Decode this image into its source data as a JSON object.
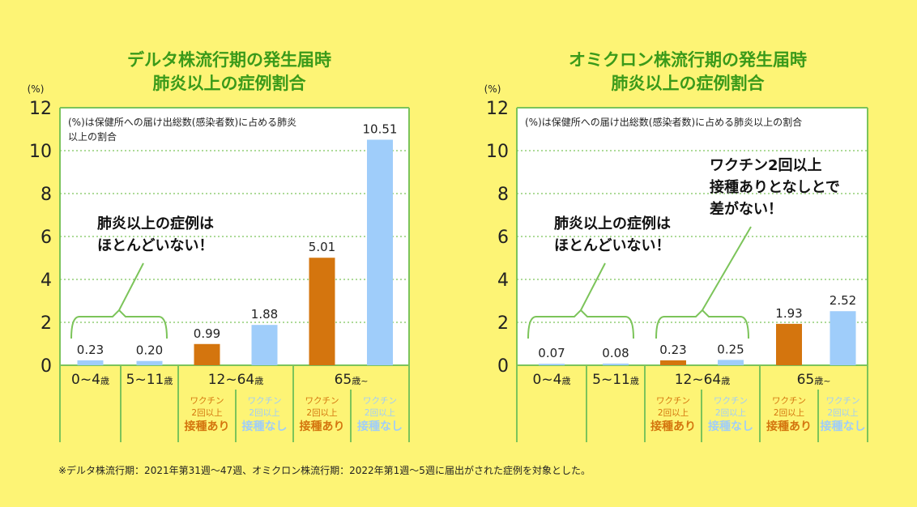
{
  "colors": {
    "vaccinated": "#d4750e",
    "unvaccinated": "#9fcdfa",
    "grid": "#7cc45a",
    "title": "#3a9a1a",
    "plot_bg": "#ffffff"
  },
  "footnote": "※デルタ株流行期：2021年第31週〜47週、オミクロン株流行期：2022年第1週〜5週に届出がされた症例を対象とした。",
  "chart_data": [
    {
      "type": "bar",
      "title": [
        "デルタ株流行期の発生届時",
        "肺炎以上の症例割合"
      ],
      "ylabel": "(%)",
      "ylim": [
        0,
        12
      ],
      "yticks": [
        "0",
        "2",
        "4",
        "6",
        "8",
        "10",
        "12"
      ],
      "note": [
        "(%)は保健所への届け出総数(感染者数)に占める肺炎",
        "以上の割合"
      ],
      "groups": [
        {
          "label": "0~4",
          "unit": "歳"
        },
        {
          "label": "5~11",
          "unit": "歳"
        },
        {
          "label": "12~64",
          "unit": "歳"
        },
        {
          "label": "65",
          "unit": "歳~"
        }
      ],
      "sub_labels": [
        {
          "l1": "ワクチン",
          "l2": "2回以上",
          "l3": "接種あり",
          "kind": "vaccinated"
        },
        {
          "l1": "ワクチン",
          "l2": "2回以上",
          "l3": "接種なし",
          "kind": "unvaccinated"
        },
        {
          "l1": "ワクチン",
          "l2": "2回以上",
          "l3": "接種あり",
          "kind": "vaccinated"
        },
        {
          "l1": "ワクチン",
          "l2": "2回以上",
          "l3": "接種なし",
          "kind": "unvaccinated"
        }
      ],
      "bars": [
        {
          "value": 0.23,
          "label": "0.23",
          "kind": "unvaccinated"
        },
        {
          "value": 0.2,
          "label": "0.20",
          "kind": "unvaccinated"
        },
        {
          "value": 0.99,
          "label": "0.99",
          "kind": "vaccinated"
        },
        {
          "value": 1.88,
          "label": "1.88",
          "kind": "unvaccinated"
        },
        {
          "value": 5.01,
          "label": "5.01",
          "kind": "vaccinated"
        },
        {
          "value": 10.51,
          "label": "10.51",
          "kind": "unvaccinated"
        }
      ],
      "annotations": [
        {
          "lines": [
            "肺炎以上の症例は",
            "ほとんどいない！"
          ],
          "bracket": [
            0,
            1
          ]
        }
      ]
    },
    {
      "type": "bar",
      "title": [
        "オミクロン株流行期の発生届時",
        "肺炎以上の症例割合"
      ],
      "ylabel": "(%)",
      "ylim": [
        0,
        12
      ],
      "yticks": [
        "0",
        "2",
        "4",
        "6",
        "8",
        "10",
        "12"
      ],
      "note": [
        "(%)は保健所への届け出総数(感染者数)に占める肺炎以上の割合"
      ],
      "groups": [
        {
          "label": "0~4",
          "unit": "歳"
        },
        {
          "label": "5~11",
          "unit": "歳"
        },
        {
          "label": "12~64",
          "unit": "歳"
        },
        {
          "label": "65",
          "unit": "歳~"
        }
      ],
      "sub_labels": [
        {
          "l1": "ワクチン",
          "l2": "2回以上",
          "l3": "接種あり",
          "kind": "vaccinated"
        },
        {
          "l1": "ワクチン",
          "l2": "2回以上",
          "l3": "接種なし",
          "kind": "unvaccinated"
        },
        {
          "l1": "ワクチン",
          "l2": "2回以上",
          "l3": "接種あり",
          "kind": "vaccinated"
        },
        {
          "l1": "ワクチン",
          "l2": "2回以上",
          "l3": "接種なし",
          "kind": "unvaccinated"
        }
      ],
      "bars": [
        {
          "value": 0.07,
          "label": "0.07",
          "kind": "unvaccinated"
        },
        {
          "value": 0.08,
          "label": "0.08",
          "kind": "unvaccinated"
        },
        {
          "value": 0.23,
          "label": "0.23",
          "kind": "vaccinated"
        },
        {
          "value": 0.25,
          "label": "0.25",
          "kind": "unvaccinated"
        },
        {
          "value": 1.93,
          "label": "1.93",
          "kind": "vaccinated"
        },
        {
          "value": 2.52,
          "label": "2.52",
          "kind": "unvaccinated"
        }
      ],
      "annotations": [
        {
          "lines": [
            "肺炎以上の症例は",
            "ほとんどいない！"
          ],
          "bracket": [
            0,
            1
          ]
        },
        {
          "lines": [
            "ワクチン2回以上",
            "接種ありとなしとで",
            "差がない！"
          ],
          "bracket": [
            2,
            3
          ]
        }
      ]
    }
  ]
}
